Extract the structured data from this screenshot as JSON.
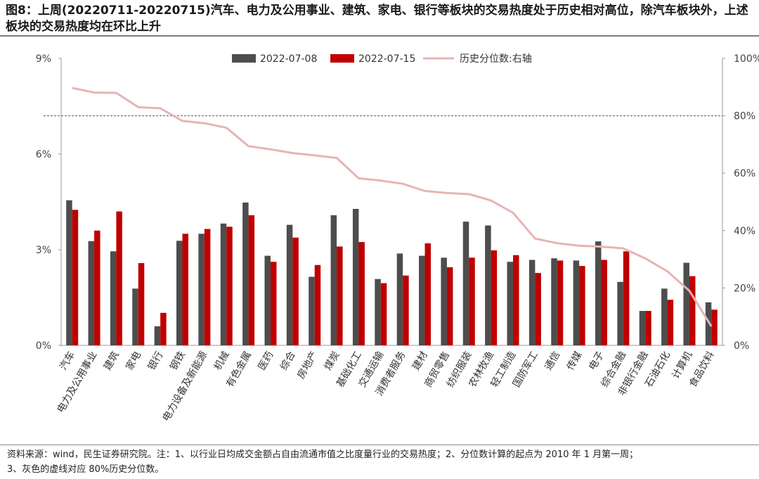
{
  "title": "图8：上周(20220711-20220715)汽车、电力及公用事业、建筑、家电、银行等板块的交易热度处于历史相对高位，除汽车板块外，上述板块的交易热度均在环比上升",
  "footer": {
    "line1": "资料来源：wind，民生证券研究院。注：1、以行业日均成交金额占自由流通市值之比度量行业的交易热度；2、分位数计算的起点为 2010 年 1 月第一周；",
    "line2": "3、灰色的虚线对应 80%历史分位数。"
  },
  "chart_data": {
    "type": "bar",
    "categories": [
      "汽车",
      "电力及公用事业",
      "建筑",
      "家电",
      "银行",
      "钢铁",
      "电力设备及新能源",
      "机械",
      "有色金属",
      "医药",
      "综合",
      "房地产",
      "煤炭",
      "基础化工",
      "交通运输",
      "消费者服务",
      "建材",
      "商贸零售",
      "纺织服装",
      "农林牧渔",
      "轻工制造",
      "国防军工",
      "通信",
      "传媒",
      "电子",
      "综合金融",
      "非银行金融",
      "石油石化",
      "计算机",
      "食品饮料"
    ],
    "series": [
      {
        "name": "2022-07-08",
        "axis": "left",
        "color": "#4d4d4d",
        "values": [
          4.55,
          3.27,
          2.95,
          1.78,
          0.6,
          3.28,
          3.5,
          3.82,
          4.48,
          2.81,
          3.78,
          2.15,
          4.08,
          4.28,
          2.08,
          2.88,
          2.81,
          2.75,
          3.88,
          3.76,
          2.62,
          2.68,
          2.73,
          2.66,
          3.26,
          1.99,
          1.08,
          1.78,
          2.59,
          1.35
        ]
      },
      {
        "name": "2022-07-15",
        "axis": "left",
        "color": "#c00000",
        "values": [
          4.25,
          3.6,
          4.2,
          2.58,
          1.02,
          3.5,
          3.65,
          3.72,
          4.08,
          2.62,
          3.38,
          2.52,
          3.1,
          3.24,
          1.95,
          2.19,
          3.2,
          2.45,
          2.75,
          2.98,
          2.83,
          2.27,
          2.66,
          2.49,
          2.68,
          2.95,
          1.08,
          1.43,
          2.17,
          1.12
        ]
      },
      {
        "name": "历史分位数:右轴",
        "axis": "right",
        "type": "line",
        "color": "#e6b4b4",
        "values": [
          89.7,
          88.1,
          88.0,
          83.0,
          82.6,
          78.2,
          77.4,
          75.8,
          69.4,
          68.3,
          67.0,
          66.2,
          65.3,
          58.2,
          57.4,
          56.3,
          53.8,
          53.1,
          52.7,
          50.5,
          46.2,
          37.2,
          35.6,
          34.7,
          34.4,
          33.8,
          30.3,
          25.8,
          19.0,
          6.6
        ]
      }
    ],
    "y_left": {
      "min": 0,
      "max": 9,
      "ticks": [
        "0%",
        "3%",
        "6%",
        "9%"
      ]
    },
    "y_right": {
      "min": 0,
      "max": 100,
      "ticks": [
        "0%",
        "20%",
        "40%",
        "60%",
        "80%",
        "100%"
      ]
    },
    "reference_line": {
      "axis": "right",
      "value": 80,
      "style": "dashed",
      "color": "#555555"
    },
    "legend_position": "top",
    "grid": false
  }
}
